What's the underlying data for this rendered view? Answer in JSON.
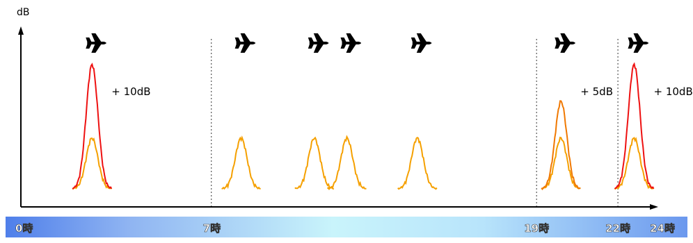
{
  "chart_data": {
    "type": "line",
    "ylabel": "dB",
    "x_unit": "時",
    "time_axis": {
      "range": [
        0,
        24
      ],
      "tick_labels": [
        {
          "hour": 0,
          "label": "0時"
        },
        {
          "hour": 7,
          "label": "7時"
        },
        {
          "hour": 19,
          "label": "19時"
        },
        {
          "hour": 22,
          "label": "22時"
        },
        {
          "hour": 24,
          "label": "24時"
        }
      ],
      "period_boundaries": [
        7,
        19,
        22
      ]
    },
    "flights": [
      {
        "hour": 2.6,
        "penalty_label": "+ 10dB",
        "penalty_db": 10
      },
      {
        "hour": 8.1
      },
      {
        "hour": 10.8
      },
      {
        "hour": 12.0
      },
      {
        "hour": 14.6
      },
      {
        "hour": 19.9,
        "penalty_label": "+ 5dB",
        "penalty_db": 5
      },
      {
        "hour": 22.6,
        "penalty_label": "+ 10dB",
        "penalty_db": 10
      }
    ],
    "legend": "none",
    "grid": false
  },
  "colors": {
    "base_curve": "#f5a000",
    "evening_curve": "#f07800",
    "night_curve": "#ee1111",
    "boundary_line": "#555555",
    "axis": "#000000"
  },
  "icons": {
    "aircraft": "airplane-icon"
  }
}
